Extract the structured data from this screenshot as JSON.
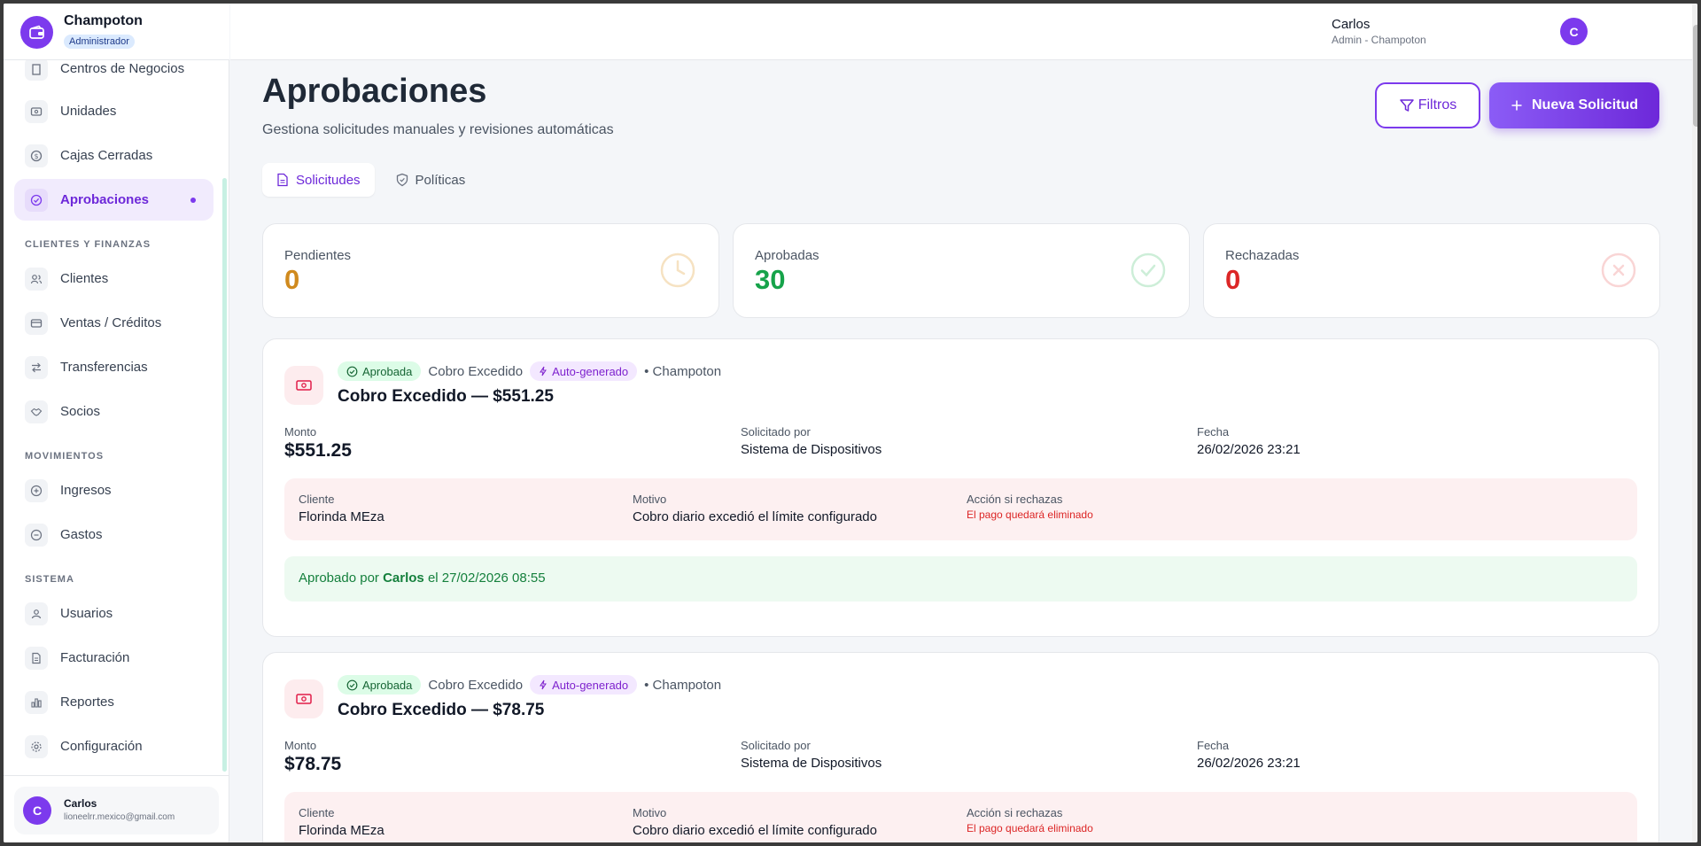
{
  "brand": {
    "name": "Champoton",
    "role": "Administrador"
  },
  "sidebar": {
    "items": [
      {
        "key": "centros",
        "label": "Centros de Negocios",
        "icon": "building-icon"
      },
      {
        "key": "unidades",
        "label": "Unidades",
        "icon": "device-icon"
      },
      {
        "key": "cajas",
        "label": "Cajas Cerradas",
        "icon": "dollar-circle-icon"
      },
      {
        "key": "aprobaciones",
        "label": "Aprobaciones",
        "icon": "check-circle-icon",
        "active": true
      },
      {
        "key": "clientes",
        "label": "Clientes",
        "icon": "users-icon"
      },
      {
        "key": "ventas",
        "label": "Ventas / Créditos",
        "icon": "credit-card-icon"
      },
      {
        "key": "transferencias",
        "label": "Transferencias",
        "icon": "transfer-icon"
      },
      {
        "key": "socios",
        "label": "Socios",
        "icon": "handshake-icon"
      },
      {
        "key": "ingresos",
        "label": "Ingresos",
        "icon": "plus-circle-icon"
      },
      {
        "key": "gastos",
        "label": "Gastos",
        "icon": "minus-circle-icon"
      },
      {
        "key": "usuarios",
        "label": "Usuarios",
        "icon": "user-gear-icon"
      },
      {
        "key": "facturacion",
        "label": "Facturación",
        "icon": "invoice-icon"
      },
      {
        "key": "reportes",
        "label": "Reportes",
        "icon": "bar-chart-icon"
      },
      {
        "key": "configuracion",
        "label": "Configuración",
        "icon": "gear-icon"
      }
    ],
    "sections": {
      "clientes_finanzas": "CLIENTES Y FINANZAS",
      "movimientos": "MOVIMIENTOS",
      "sistema": "SISTEMA"
    },
    "user": {
      "initial": "C",
      "name": "Carlos",
      "email": "lioneelrr.mexico@gmail.com"
    }
  },
  "header": {
    "initial": "C",
    "name": "Carlos",
    "subtitle": "Admin - Champoton"
  },
  "page": {
    "title": "Aprobaciones",
    "subtitle": "Gestiona solicitudes manuales y revisiones automáticas",
    "filter_label": "Filtros",
    "new_label": "Nueva Solicitud",
    "tabs": [
      {
        "label": "Solicitudes",
        "active": true
      },
      {
        "label": "Políticas",
        "active": false
      }
    ]
  },
  "stats": [
    {
      "label": "Pendientes",
      "value": "0",
      "color": "#d08a1e",
      "icon": "clock-icon"
    },
    {
      "label": "Aprobadas",
      "value": "30",
      "color": "#16a34a",
      "icon": "check-circle-icon"
    },
    {
      "label": "Rechazadas",
      "value": "0",
      "color": "#dc2626",
      "icon": "x-circle-icon"
    }
  ],
  "requests": [
    {
      "status": "Aprobada",
      "type": "Cobro Excedido",
      "auto": "Auto-generado",
      "branch": "• Champoton",
      "title": "Cobro Excedido — $551.25",
      "monto_label": "Monto",
      "monto": "$551.25",
      "solicitado_label": "Solicitado por",
      "solicitado": "Sistema de Dispositivos",
      "fecha_label": "Fecha",
      "fecha": "26/02/2026 23:21",
      "cliente_label": "Cliente",
      "cliente": "Florinda MEza",
      "motivo_label": "Motivo",
      "motivo": "Cobro diario excedió el límite configurado",
      "accion_label": "Acción si rechazas",
      "accion": "El pago quedará eliminado",
      "approved_prefix": "Aprobado por",
      "approved_by": "Carlos",
      "approved_suffix": "el 27/02/2026 08:55"
    },
    {
      "status": "Aprobada",
      "type": "Cobro Excedido",
      "auto": "Auto-generado",
      "branch": "• Champoton",
      "title": "Cobro Excedido — $78.75",
      "monto_label": "Monto",
      "monto": "$78.75",
      "solicitado_label": "Solicitado por",
      "solicitado": "Sistema de Dispositivos",
      "fecha_label": "Fecha",
      "fecha": "26/02/2026 23:21",
      "cliente_label": "Cliente",
      "cliente": "Florinda MEza",
      "motivo_label": "Motivo",
      "motivo": "Cobro diario excedió el límite configurado",
      "accion_label": "Acción si rechazas",
      "accion": "El pago quedará eliminado"
    }
  ]
}
